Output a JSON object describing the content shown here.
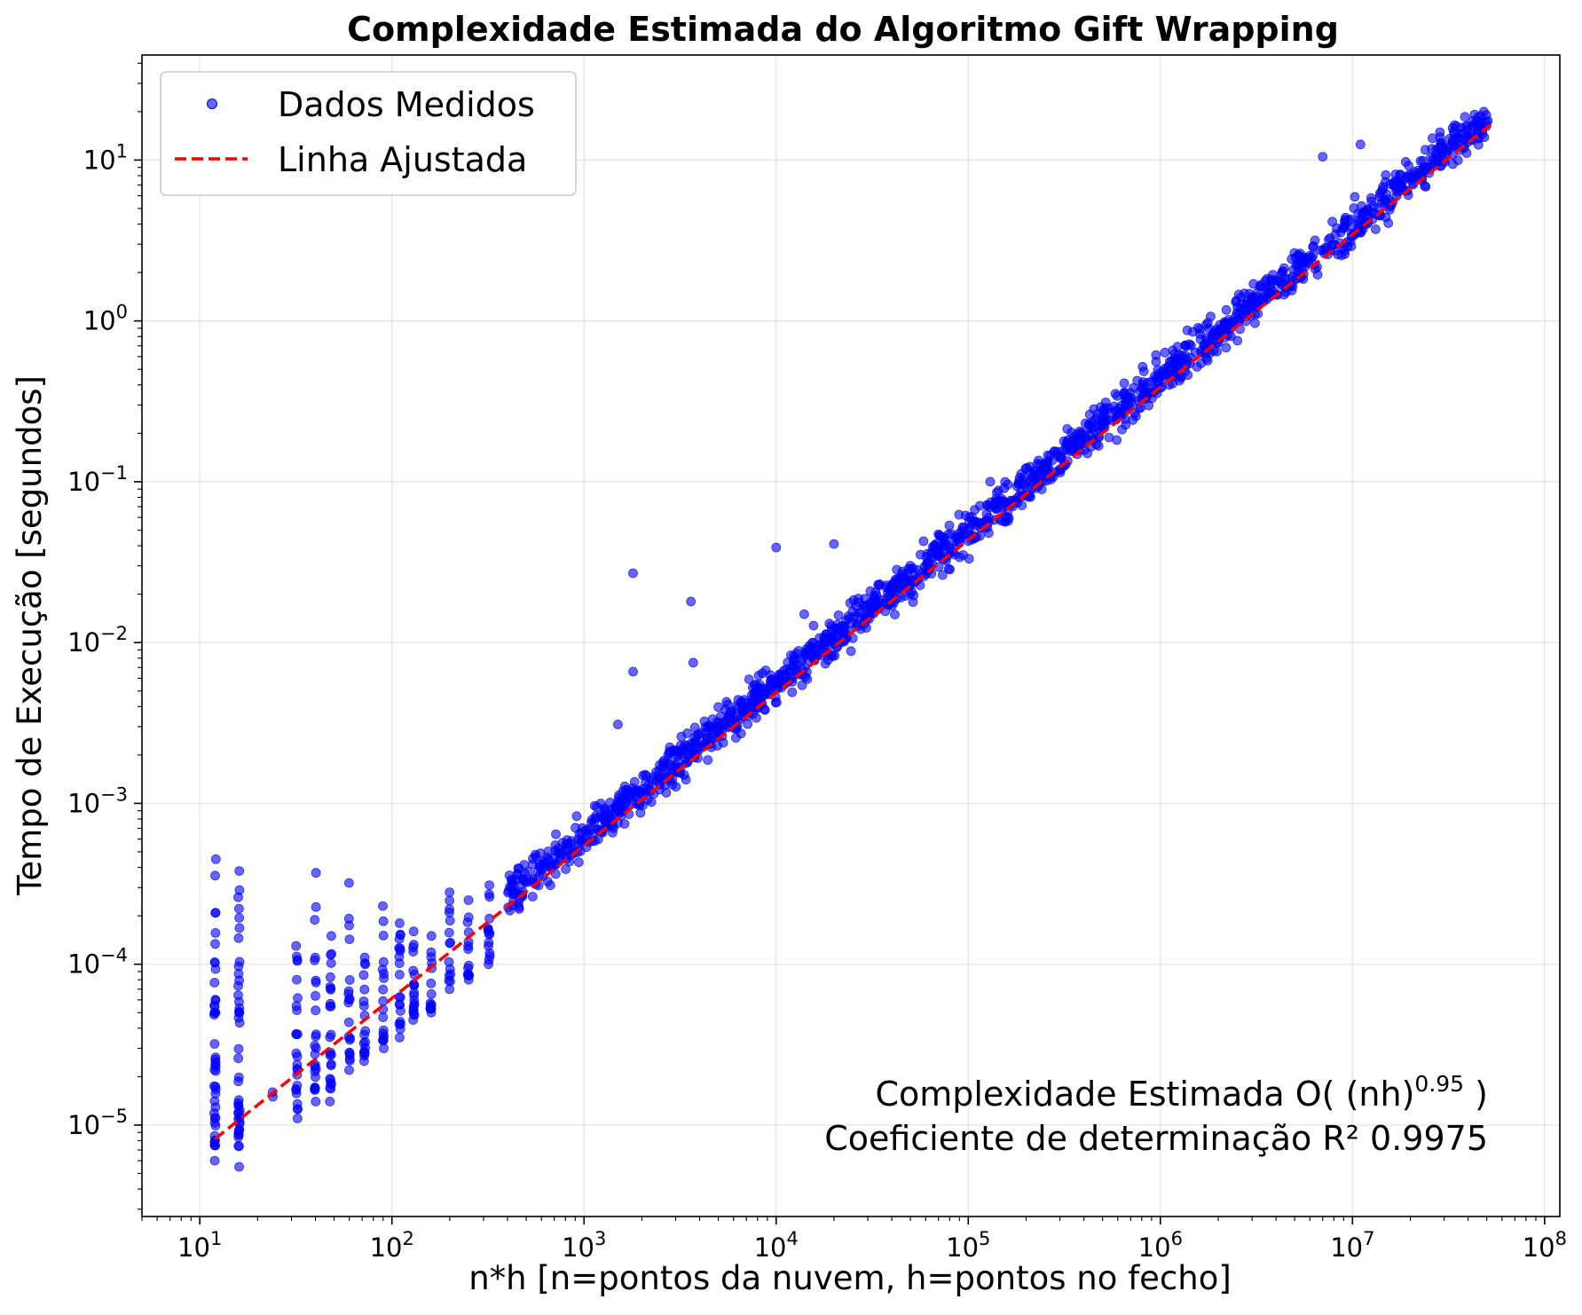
{
  "chart_data": {
    "type": "scatter",
    "title": "Complexidade Estimada do Algoritmo Gift Wrapping",
    "xlabel": "n*h [n=pontos da nuvem, h=pontos no fecho]",
    "ylabel": "Tempo de Execução [segundos]",
    "xscale": "log",
    "yscale": "log",
    "xlim": [
      5,
      120000000
    ],
    "ylim": [
      2.7e-06,
      45
    ],
    "grid": true,
    "legend_position": "top-left",
    "x_ticks": [
      {
        "value": 10,
        "base": "10",
        "exp": "1"
      },
      {
        "value": 100,
        "base": "10",
        "exp": "2"
      },
      {
        "value": 1000,
        "base": "10",
        "exp": "3"
      },
      {
        "value": 10000,
        "base": "10",
        "exp": "4"
      },
      {
        "value": 100000,
        "base": "10",
        "exp": "5"
      },
      {
        "value": 1000000,
        "base": "10",
        "exp": "6"
      },
      {
        "value": 10000000,
        "base": "10",
        "exp": "7"
      },
      {
        "value": 100000000,
        "base": "10",
        "exp": "8"
      }
    ],
    "y_ticks": [
      {
        "value": 1e-05,
        "base": "10",
        "exp": "−5"
      },
      {
        "value": 0.0001,
        "base": "10",
        "exp": "−4"
      },
      {
        "value": 0.001,
        "base": "10",
        "exp": "−3"
      },
      {
        "value": 0.01,
        "base": "10",
        "exp": "−2"
      },
      {
        "value": 0.1,
        "base": "10",
        "exp": "−1"
      },
      {
        "value": 1,
        "base": "10",
        "exp": "0"
      },
      {
        "value": 10,
        "base": "10",
        "exp": "1"
      }
    ],
    "series": [
      {
        "name": "Dados Medidos",
        "kind": "scatter",
        "color": "#0000ff",
        "clusters": [
          {
            "x": 12,
            "y_min": 6e-06,
            "y_max": 0.00045,
            "n": 45
          },
          {
            "x": 16,
            "y_min": 5.5e-06,
            "y_max": 0.00038,
            "n": 45
          },
          {
            "x": 24,
            "y_min": 1.5e-05,
            "y_max": 1.6e-05,
            "n": 2
          },
          {
            "x": 32,
            "y_min": 1.1e-05,
            "y_max": 0.00013,
            "n": 25
          },
          {
            "x": 40,
            "y_min": 1.4e-05,
            "y_max": 0.00037,
            "n": 25
          },
          {
            "x": 48,
            "y_min": 1.4e-05,
            "y_max": 0.00015,
            "n": 25
          },
          {
            "x": 60,
            "y_min": 2.2e-05,
            "y_max": 0.00032,
            "n": 20
          },
          {
            "x": 72,
            "y_min": 2.5e-05,
            "y_max": 0.00011,
            "n": 18
          },
          {
            "x": 90,
            "y_min": 3e-05,
            "y_max": 0.00023,
            "n": 18
          },
          {
            "x": 110,
            "y_min": 3.5e-05,
            "y_max": 0.00018,
            "n": 20
          },
          {
            "x": 130,
            "y_min": 4.5e-05,
            "y_max": 0.00016,
            "n": 20
          },
          {
            "x": 160,
            "y_min": 5e-05,
            "y_max": 0.00015,
            "n": 15
          },
          {
            "x": 200,
            "y_min": 7e-05,
            "y_max": 0.00028,
            "n": 15
          },
          {
            "x": 250,
            "y_min": 8e-05,
            "y_max": 0.00025,
            "n": 15
          },
          {
            "x": 320,
            "y_min": 0.0001,
            "y_max": 0.00031,
            "n": 15
          }
        ],
        "clouds": [
          {
            "x_min": 400,
            "x_max": 2000,
            "n": 220
          },
          {
            "x_min": 2000,
            "x_max": 10000,
            "n": 240
          },
          {
            "x_min": 10000,
            "x_max": 50000,
            "n": 240
          },
          {
            "x_min": 50000,
            "x_max": 250000,
            "n": 220
          },
          {
            "x_min": 250000,
            "x_max": 1200000,
            "n": 220
          },
          {
            "x_min": 1200000,
            "x_max": 6000000,
            "n": 220
          },
          {
            "x_min": 6000000,
            "x_max": 52000000,
            "n": 260
          }
        ],
        "outliers": [
          {
            "x": 1800,
            "y": 0.027
          },
          {
            "x": 3600,
            "y": 0.018
          },
          {
            "x": 10000,
            "y": 0.039
          },
          {
            "x": 20000,
            "y": 0.041
          },
          {
            "x": 1800,
            "y": 0.0066
          },
          {
            "x": 3700,
            "y": 0.0075
          },
          {
            "x": 1500,
            "y": 0.0031
          },
          {
            "x": 14000,
            "y": 0.015
          },
          {
            "x": 130000,
            "y": 0.1
          },
          {
            "x": 650000,
            "y": 0.36
          },
          {
            "x": 11000000,
            "y": 12.5
          },
          {
            "x": 7000000,
            "y": 10.5
          }
        ]
      },
      {
        "name": "Linha Ajustada",
        "kind": "line",
        "style": "dashed",
        "color": "#ff0000",
        "x": [
          12,
          52000000
        ],
        "y": [
          8.2e-06,
          16.5
        ]
      }
    ],
    "annotations": {
      "line1_text": "Complexidade Estimada O( (nh)",
      "line1_sup": "0.95",
      "line1_end": " )",
      "line2": "Coeficiente de determinação R² 0.9975"
    }
  }
}
